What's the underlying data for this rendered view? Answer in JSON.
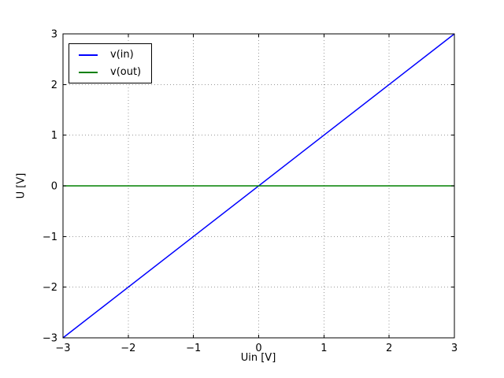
{
  "window": {
    "background": "#ffffff"
  },
  "chart_data": {
    "type": "line",
    "title": "",
    "xlabel": "Uin [V]",
    "ylabel": "U [V]",
    "xlim": [
      -3,
      3
    ],
    "ylim": [
      -3,
      3
    ],
    "xticks": [
      -3,
      -2,
      -1,
      0,
      1,
      2,
      3
    ],
    "yticks": [
      -3,
      -2,
      -1,
      0,
      1,
      2,
      3
    ],
    "xtick_labels": [
      "−3",
      "−2",
      "−1",
      "0",
      "1",
      "2",
      "3"
    ],
    "ytick_labels": [
      "−3",
      "−2",
      "−1",
      "0",
      "1",
      "2",
      "3"
    ],
    "grid": true,
    "grid_style": "dotted",
    "grid_color": "#999999",
    "legend_position": "upper-left",
    "series": [
      {
        "name": "v(in)",
        "color": "#0000ff",
        "points": [
          [
            -3,
            -3
          ],
          [
            3,
            3
          ]
        ]
      },
      {
        "name": "v(out)",
        "color": "#008000",
        "points": [
          [
            -3,
            0
          ],
          [
            3,
            0
          ]
        ]
      }
    ]
  }
}
